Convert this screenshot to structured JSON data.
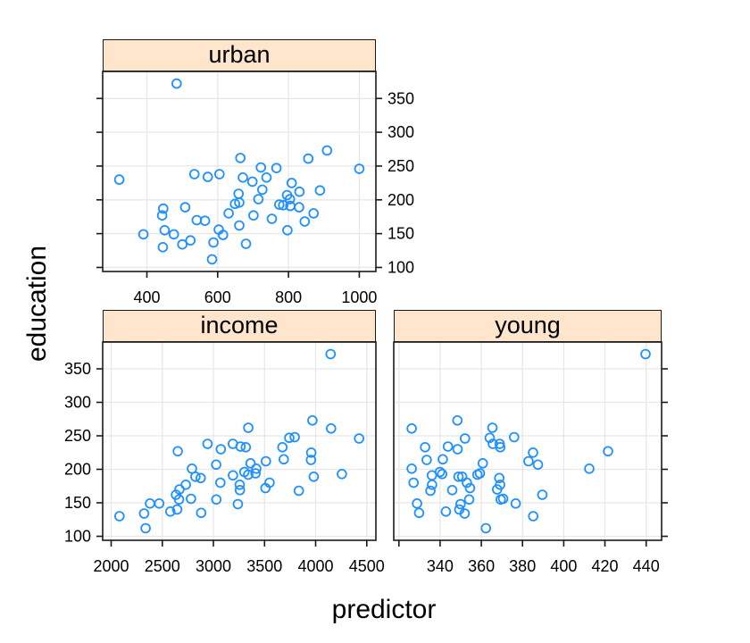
{
  "chart_data": {
    "type": "scatter",
    "title": "",
    "xlabel": "predictor",
    "ylabel": "education",
    "grid": true,
    "legend": null,
    "marker": "open-circle",
    "ylim": [
      94,
      390
    ],
    "yticks": [
      100,
      150,
      200,
      250,
      300,
      350
    ],
    "ytick_labels": [
      "100",
      "150",
      "200",
      "250",
      "300",
      "350"
    ],
    "y_series_name": "education",
    "y": [
      189,
      169,
      230,
      168,
      180,
      193,
      261,
      214,
      201,
      172,
      194,
      189,
      233,
      209,
      262,
      234,
      177,
      177,
      187,
      148,
      196,
      248,
      247,
      246,
      180,
      149,
      155,
      149,
      156,
      191,
      140,
      137,
      112,
      130,
      134,
      162,
      135,
      155,
      238,
      170,
      238,
      192,
      227,
      207,
      201,
      225,
      215,
      233,
      273,
      372,
      212
    ],
    "panels": [
      {
        "name": "urban",
        "xlim": [
          275,
          1047
        ],
        "xticks": [
          400,
          600,
          800,
          1000
        ],
        "xtick_labels": [
          "400",
          "600",
          "800",
          "1000"
        ],
        "x": [
          508,
          564,
          322,
          846,
          871,
          774,
          856,
          889,
          715,
          753,
          649,
          830,
          738,
          659,
          664,
          572,
          701,
          443,
          446,
          615,
          661,
          722,
          766,
          1000,
          631,
          390,
          450,
          476,
          603,
          805,
          523,
          588,
          584,
          445,
          500,
          661,
          680,
          797,
          534,
          541,
          605,
          785,
          698,
          796,
          804,
          809,
          726,
          671,
          909,
          484,
          831
        ],
        "layout": {
          "row": "top",
          "col": "left",
          "y_labels": "right",
          "y_ticks_unlabeled": "left",
          "x_axis": "bottom"
        }
      },
      {
        "name": "income",
        "xlim": [
          1917,
          4589
        ],
        "xticks": [
          2000,
          2500,
          3000,
          3500,
          4000,
          4500
        ],
        "xtick_labels": [
          "2000",
          "2500",
          "3000",
          "3500",
          "4000",
          "4500"
        ],
        "x": [
          2824,
          3259,
          3072,
          3835,
          3549,
          4256,
          4151,
          3954,
          3419,
          3509,
          3412,
          3981,
          3675,
          3363,
          3341,
          3265,
          3257,
          2730,
          2876,
          3239,
          3303,
          3795,
          3742,
          4425,
          3068,
          2470,
          2664,
          2380,
          2781,
          3191,
          2645,
          2579,
          2337,
          2081,
          2322,
          2634,
          2880,
          3029,
          2942,
          2668,
          3190,
          3340,
          2651,
          3027,
          2790,
          3957,
          3688,
          3317,
          3968,
          4146,
          3513
        ],
        "layout": {
          "row": "bottom",
          "col": "left",
          "y_labels": "left",
          "x_axis": "bottom"
        }
      },
      {
        "name": "young",
        "xlim": [
          317.5,
          447.5
        ],
        "xticks": [
          320,
          340,
          360,
          380,
          400,
          420,
          440
        ],
        "xtick_labels": [
          "",
          "340",
          "360",
          "380",
          "400",
          "420",
          "440"
        ],
        "x": [
          350.7,
          345.9,
          348.5,
          335.3,
          327.1,
          341.0,
          326.2,
          333.5,
          326.2,
          354.5,
          359.3,
          348.9,
          369.2,
          360.7,
          365.4,
          343.8,
          336.1,
          369.1,
          368.7,
          349.9,
          339.9,
          375.9,
          364.1,
          352.1,
          353.0,
          328.8,
          354.1,
          376.7,
          370.6,
          336.0,
          349.3,
          342.8,
          362.2,
          385.2,
          351.9,
          389.6,
          329.8,
          369.4,
          368.9,
          367.7,
          365.6,
          358.1,
          421.5,
          387.5,
          412.4,
          385.1,
          341.3,
          332.7,
          348.4,
          439.7,
          382.9
        ],
        "layout": {
          "row": "bottom",
          "col": "right",
          "y_labels": "none",
          "y_ticks_unlabeled": "right",
          "x_axis": "bottom"
        }
      }
    ],
    "style": {
      "point_color": "#1E90FF",
      "strip_bg": "#FFE5CC",
      "grid_color": "#E7E7E7",
      "border_color": "#1a1a1a",
      "background": "#FFFFFF"
    }
  }
}
